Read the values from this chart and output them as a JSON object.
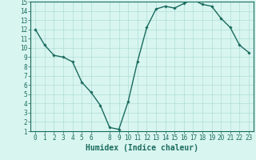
{
  "x": [
    0,
    1,
    2,
    3,
    4,
    5,
    6,
    7,
    8,
    9,
    10,
    11,
    12,
    13,
    14,
    15,
    16,
    17,
    18,
    19,
    20,
    21,
    22,
    23
  ],
  "y": [
    12.0,
    10.3,
    9.2,
    9.0,
    8.5,
    6.3,
    5.2,
    3.8,
    1.4,
    1.2,
    4.2,
    8.5,
    12.2,
    14.2,
    14.5,
    14.3,
    14.8,
    15.2,
    14.7,
    14.5,
    13.2,
    12.2,
    10.3,
    9.5
  ],
  "line_color": "#1a6b5e",
  "marker": "D",
  "marker_size": 1.8,
  "bg_color": "#d8f5f0",
  "grid_color": "#b0ddd6",
  "xlabel": "Humidex (Indice chaleur)",
  "xlim": [
    -0.5,
    23.5
  ],
  "ylim": [
    1,
    15
  ],
  "yticks": [
    1,
    2,
    3,
    4,
    5,
    6,
    7,
    8,
    9,
    10,
    11,
    12,
    13,
    14,
    15
  ],
  "xticks": [
    0,
    1,
    2,
    3,
    4,
    5,
    6,
    8,
    9,
    10,
    11,
    12,
    13,
    14,
    15,
    16,
    17,
    18,
    19,
    20,
    21,
    22,
    23
  ],
  "axis_color": "#1a6b5e",
  "tick_color": "#1a6b5e",
  "label_color": "#1a6b5e",
  "xlabel_fontsize": 7,
  "tick_fontsize": 5.5,
  "line_width": 1.0
}
